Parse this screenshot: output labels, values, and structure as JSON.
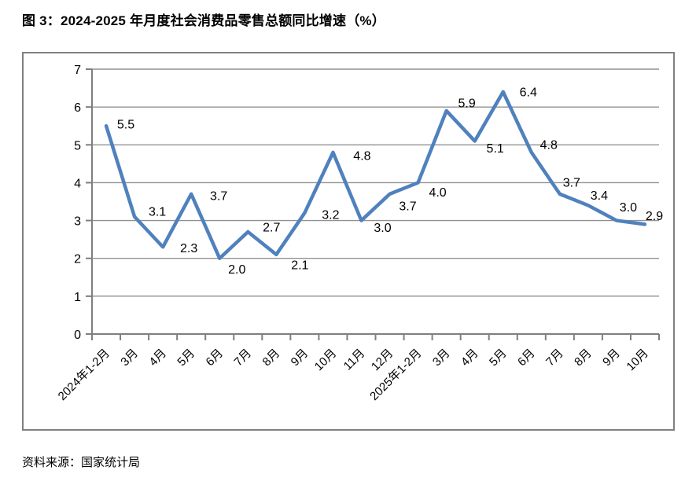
{
  "figure": {
    "title": "图 3：2024-2025 年月度社会消费品零售总额同比增速（%）",
    "source": "资料来源：国家统计局"
  },
  "chart_data": {
    "type": "line",
    "categories": [
      "2024年1-2月",
      "3月",
      "4月",
      "5月",
      "6月",
      "7月",
      "8月",
      "9月",
      "10月",
      "11月",
      "12月",
      "2025年1-2月",
      "3月",
      "4月",
      "5月",
      "6月",
      "7月",
      "8月",
      "9月",
      "10月"
    ],
    "series": [
      {
        "name": "社会消费品零售总额同比增速",
        "values": [
          5.5,
          3.1,
          2.3,
          3.7,
          2.0,
          2.7,
          2.1,
          3.2,
          4.8,
          3.0,
          3.7,
          4.0,
          5.9,
          5.1,
          6.4,
          4.8,
          3.7,
          3.4,
          3.0,
          2.9
        ]
      }
    ],
    "title": "",
    "xlabel": "",
    "ylabel": "",
    "ylim": [
      0,
      7
    ],
    "yticks": [
      0,
      1,
      2,
      3,
      4,
      5,
      6,
      7
    ],
    "grid": true,
    "legend": false,
    "data_labels": true,
    "colors": {
      "line": "#4F81BD",
      "gridline": "#909090",
      "axis": "#7F7F7F",
      "label_text": "#000000"
    }
  }
}
